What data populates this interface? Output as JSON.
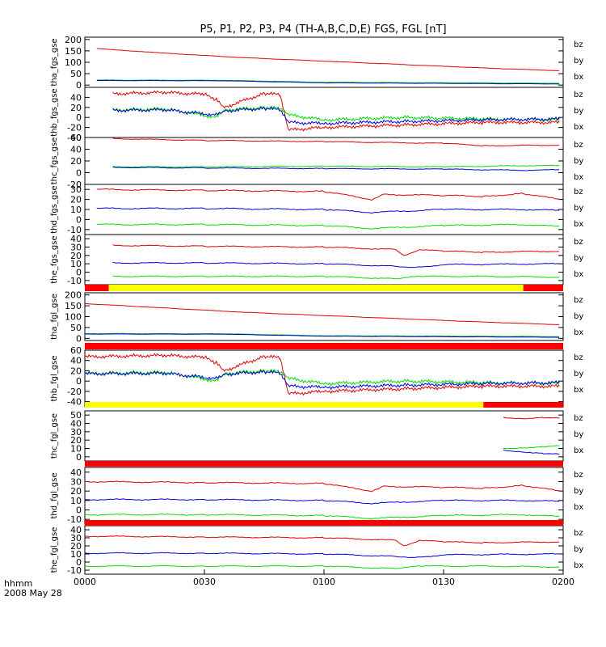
{
  "title": "P5, P1, P2, P3, P4 (TH-A,B,C,D,E) FGS, FGL [nT]",
  "footer": {
    "label1": "hhmm",
    "label2": "2008 May 28"
  },
  "colors": {
    "bz": "#e00000",
    "by": "#00dd00",
    "bx": "#0000dd",
    "bar_red": "#ff0000",
    "bar_yellow": "#ffff00",
    "bar_black": "#000000"
  },
  "x_axis": {
    "range": [
      0,
      120
    ],
    "unit": "minutes since 0000",
    "ticks": [
      0,
      30,
      60,
      90,
      120
    ],
    "tick_labels": [
      "0000",
      "0030",
      "0100",
      "0130",
      "0200"
    ]
  },
  "chart_data": [
    {
      "type": "line",
      "ylabel": "tha_fgs_gse",
      "ylim": [
        -10,
        210
      ],
      "ticks": [
        0,
        50,
        100,
        150,
        200
      ],
      "tick_labels": [
        "0",
        "50",
        "100",
        "150",
        "200"
      ],
      "legend": [
        "bz",
        "by",
        "bx"
      ],
      "series": [
        {
          "name": "bz",
          "x": [
            3,
            20,
            40,
            60,
            80,
            100,
            119
          ],
          "y": [
            160,
            140,
            120,
            105,
            90,
            75,
            63
          ]
        },
        {
          "name": "by",
          "x": [
            3,
            35,
            60,
            119
          ],
          "y": [
            22,
            21,
            12,
            8
          ]
        },
        {
          "name": "bx",
          "x": [
            3,
            35,
            60,
            119
          ],
          "y": [
            20,
            19,
            10,
            5
          ]
        }
      ]
    },
    {
      "type": "line",
      "ylabel": "thb_fgs_gse",
      "ylim": [
        -40,
        60
      ],
      "ticks": [
        -40,
        -20,
        0,
        20,
        40
      ],
      "tick_labels": [
        "-40",
        "-20",
        "0",
        "20",
        "40"
      ],
      "legend": [
        "bz",
        "by",
        "bx"
      ],
      "series": [
        {
          "name": "bz",
          "x": [
            7,
            20,
            30,
            33,
            35,
            45,
            49,
            51,
            60,
            80,
            100,
            119
          ],
          "y": [
            47,
            50,
            46,
            35,
            20,
            48,
            45,
            -25,
            -20,
            -15,
            -10,
            -10
          ]
        },
        {
          "name": "by",
          "x": [
            7,
            20,
            33,
            35,
            45,
            49,
            51,
            60,
            80,
            100,
            119
          ],
          "y": [
            15,
            17,
            0,
            15,
            20,
            18,
            5,
            -5,
            0,
            -3,
            -5
          ]
        },
        {
          "name": "bx",
          "x": [
            7,
            20,
            33,
            35,
            45,
            49,
            51,
            60,
            80,
            100,
            119
          ],
          "y": [
            14,
            15,
            5,
            13,
            18,
            15,
            -10,
            -12,
            -8,
            -5,
            -3
          ]
        }
      ]
    },
    {
      "type": "line",
      "ylabel": "thc_fgs_gse",
      "ylim": [
        -20,
        60
      ],
      "ticks": [
        -20,
        0,
        20,
        40,
        60
      ],
      "tick_labels": [
        "-20",
        "0",
        "20",
        "40",
        "60"
      ],
      "legend": [
        "bz",
        "by",
        "bx"
      ],
      "series": [
        {
          "name": "bz",
          "x": [
            7,
            30,
            60,
            90,
            100,
            119
          ],
          "y": [
            58,
            55,
            53,
            50,
            46,
            47
          ]
        },
        {
          "name": "by",
          "x": [
            7,
            30,
            60,
            90,
            110,
            119
          ],
          "y": [
            10,
            10,
            11,
            10,
            12,
            12
          ]
        },
        {
          "name": "bx",
          "x": [
            7,
            30,
            60,
            90,
            110,
            119
          ],
          "y": [
            9,
            8,
            7,
            6,
            4,
            5
          ]
        }
      ]
    },
    {
      "type": "line",
      "ylabel": "thd_fgs_gse",
      "ylim": [
        -15,
        35
      ],
      "ticks": [
        -10,
        0,
        10,
        20,
        30
      ],
      "tick_labels": [
        "-10",
        "0",
        "10",
        "20",
        "30"
      ],
      "legend": [
        "bz",
        "by",
        "bx"
      ],
      "series": [
        {
          "name": "bz",
          "x": [
            3,
            30,
            60,
            72,
            75,
            90,
            100,
            110,
            119
          ],
          "y": [
            30,
            29,
            28,
            20,
            25,
            24,
            23,
            26,
            20
          ]
        },
        {
          "name": "by",
          "x": [
            3,
            30,
            60,
            72,
            90,
            110,
            119
          ],
          "y": [
            -5,
            -5,
            -6,
            -9,
            -6,
            -5,
            -7
          ]
        },
        {
          "name": "bx",
          "x": [
            3,
            30,
            60,
            72,
            90,
            110,
            119
          ],
          "y": [
            11,
            11,
            10,
            7,
            10,
            10,
            9
          ]
        }
      ]
    },
    {
      "type": "line",
      "ylabel": "the_fgs_gse",
      "ylim": [
        -15,
        45
      ],
      "ticks": [
        -10,
        0,
        10,
        20,
        30,
        40
      ],
      "tick_labels": [
        "-10",
        "0",
        "10",
        "20",
        "30",
        "40"
      ],
      "legend": [
        "bz",
        "by",
        "bx"
      ],
      "series": [
        {
          "name": "bz",
          "x": [
            7,
            30,
            60,
            78,
            80,
            84,
            90,
            100,
            119
          ],
          "y": [
            32,
            31,
            30,
            27,
            20,
            27,
            25,
            24,
            25
          ]
        },
        {
          "name": "by",
          "x": [
            7,
            30,
            60,
            78,
            84,
            100,
            119
          ],
          "y": [
            -5,
            -5,
            -5,
            -8,
            -5,
            -5,
            -6
          ]
        },
        {
          "name": "bx",
          "x": [
            7,
            30,
            60,
            78,
            82,
            90,
            119
          ],
          "y": [
            11,
            11,
            10,
            7,
            5,
            9,
            10
          ]
        }
      ]
    },
    {
      "type": "line",
      "ylabel": "tha_fgl_gse",
      "ylim": [
        -10,
        210
      ],
      "ticks": [
        0,
        50,
        100,
        150,
        200
      ],
      "tick_labels": [
        "0",
        "50",
        "100",
        "150",
        "200"
      ],
      "legend": [
        "bz",
        "by",
        "bx"
      ],
      "series": [
        {
          "name": "bz",
          "x": [
            0,
            20,
            40,
            60,
            80,
            100,
            119
          ],
          "y": [
            160,
            140,
            120,
            105,
            90,
            75,
            63
          ]
        },
        {
          "name": "by",
          "x": [
            0,
            35,
            60,
            119
          ],
          "y": [
            22,
            21,
            12,
            8
          ]
        },
        {
          "name": "bx",
          "x": [
            0,
            35,
            60,
            119
          ],
          "y": [
            20,
            19,
            10,
            5
          ]
        }
      ]
    },
    {
      "type": "line",
      "ylabel": "thb_fgl_gse",
      "ylim": [
        -50,
        60
      ],
      "ticks": [
        -40,
        -20,
        0,
        20,
        40,
        60
      ],
      "tick_labels": [
        "-40",
        "-20",
        "0",
        "20",
        "40",
        "60"
      ],
      "legend": [
        "bz",
        "by",
        "bx"
      ],
      "series": [
        {
          "name": "bz",
          "x": [
            0,
            20,
            30,
            33,
            35,
            45,
            49,
            51,
            60,
            80,
            100,
            119
          ],
          "y": [
            47,
            50,
            46,
            35,
            20,
            48,
            45,
            -25,
            -20,
            -15,
            -10,
            -10
          ]
        },
        {
          "name": "by",
          "x": [
            0,
            20,
            33,
            35,
            45,
            49,
            51,
            60,
            80,
            100,
            119
          ],
          "y": [
            15,
            17,
            0,
            15,
            20,
            18,
            5,
            -5,
            0,
            -3,
            -5
          ]
        },
        {
          "name": "bx",
          "x": [
            0,
            20,
            33,
            35,
            45,
            49,
            51,
            60,
            80,
            100,
            119
          ],
          "y": [
            14,
            15,
            5,
            13,
            18,
            15,
            -10,
            -12,
            -8,
            -5,
            -3
          ]
        }
      ]
    },
    {
      "type": "line",
      "ylabel": "thc_fgl_gse",
      "ylim": [
        -5,
        55
      ],
      "ticks": [
        0,
        10,
        20,
        30,
        40,
        50
      ],
      "tick_labels": [
        "0",
        "10",
        "20",
        "30",
        "40",
        "50"
      ],
      "legend": [
        "bz",
        "by",
        "bx"
      ],
      "series": [
        {
          "name": "bz",
          "x": [
            105,
            110,
            115,
            119
          ],
          "y": [
            47,
            46,
            47,
            46
          ]
        },
        {
          "name": "by",
          "x": [
            105,
            110,
            115,
            119
          ],
          "y": [
            10,
            11,
            12,
            13
          ]
        },
        {
          "name": "bx",
          "x": [
            105,
            110,
            115,
            119
          ],
          "y": [
            8,
            6,
            4,
            3
          ]
        }
      ]
    },
    {
      "type": "line",
      "ylabel": "thd_fgl_gse",
      "ylim": [
        -15,
        45
      ],
      "ticks": [
        -10,
        0,
        10,
        20,
        30,
        40
      ],
      "tick_labels": [
        "-10",
        "0",
        "10",
        "20",
        "30",
        "40"
      ],
      "legend": [
        "bz",
        "by",
        "bx"
      ],
      "series": [
        {
          "name": "bz",
          "x": [
            0,
            30,
            60,
            72,
            75,
            90,
            100,
            110,
            119
          ],
          "y": [
            30,
            29,
            28,
            20,
            25,
            24,
            23,
            26,
            20
          ]
        },
        {
          "name": "by",
          "x": [
            0,
            30,
            60,
            72,
            90,
            110,
            119
          ],
          "y": [
            -5,
            -5,
            -6,
            -9,
            -6,
            -5,
            -7
          ]
        },
        {
          "name": "bx",
          "x": [
            0,
            30,
            60,
            72,
            90,
            110,
            119
          ],
          "y": [
            11,
            11,
            10,
            7,
            10,
            10,
            9
          ]
        }
      ]
    },
    {
      "type": "line",
      "ylabel": "the_fgl_gse",
      "ylim": [
        -15,
        45
      ],
      "ticks": [
        -10,
        0,
        10,
        20,
        30,
        40
      ],
      "tick_labels": [
        "-10",
        "0",
        "10",
        "20",
        "30",
        "40"
      ],
      "legend": [
        "bz",
        "by",
        "bx"
      ],
      "series": [
        {
          "name": "bz",
          "x": [
            0,
            30,
            60,
            78,
            80,
            84,
            90,
            100,
            119
          ],
          "y": [
            32,
            31,
            30,
            27,
            20,
            27,
            25,
            24,
            25
          ]
        },
        {
          "name": "by",
          "x": [
            0,
            30,
            60,
            78,
            84,
            100,
            119
          ],
          "y": [
            -5,
            -5,
            -5,
            -8,
            -5,
            -5,
            -6
          ]
        },
        {
          "name": "bx",
          "x": [
            0,
            30,
            60,
            78,
            82,
            90,
            119
          ],
          "y": [
            11,
            11,
            10,
            7,
            5,
            9,
            10
          ]
        }
      ]
    }
  ],
  "mode_bars": [
    {
      "segments": [
        {
          "from": 0,
          "to": 6,
          "color": "bar_red"
        },
        {
          "from": 6,
          "to": 110,
          "color": "bar_yellow"
        },
        {
          "from": 110,
          "to": 120,
          "color": "bar_red"
        }
      ]
    },
    {
      "segments": [
        {
          "from": 0,
          "to": 120,
          "color": "bar_red"
        }
      ]
    },
    {
      "segments": [
        {
          "from": 0,
          "to": 100,
          "color": "bar_yellow"
        },
        {
          "from": 100,
          "to": 120,
          "color": "bar_red"
        }
      ]
    },
    {
      "segments": [
        {
          "from": 0,
          "to": 120,
          "color": "bar_red"
        }
      ]
    },
    {
      "segments": [
        {
          "from": 0,
          "to": 120,
          "color": "bar_red"
        }
      ]
    }
  ]
}
